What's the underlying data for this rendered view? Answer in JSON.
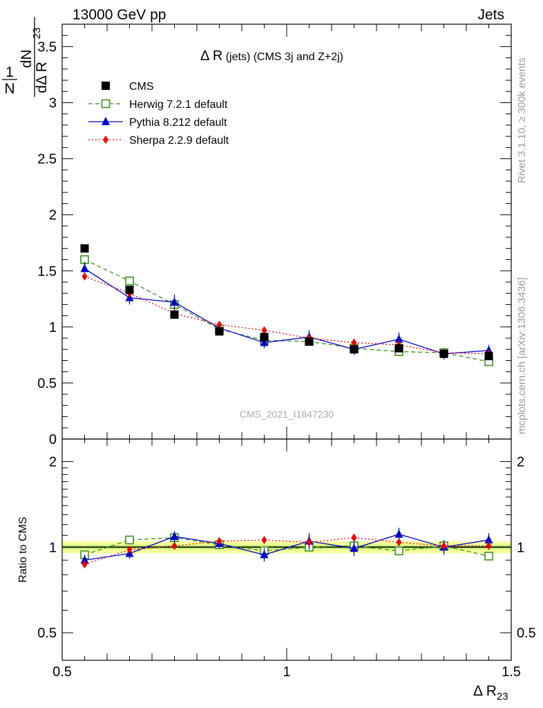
{
  "header": {
    "left": "13000 GeV pp",
    "right": "Jets"
  },
  "side_labels": {
    "rivet": "Rivet 3.1.10, ≥ 300k events",
    "mcplots": "mcplots.cern.ch [arXiv:1306.3436]"
  },
  "main_plot": {
    "title_main": "Δ R",
    "title_sub": " (jets) (CMS 3j and Z+2j)",
    "watermark": "CMS_2021_I1847230",
    "ylabel": {
      "prefix_num": "1",
      "prefix_den": "N",
      "frac_num": "dN",
      "frac_den": "dΔ R",
      "sub": "23"
    },
    "ytick_labels": [
      "0",
      "0.5",
      "1",
      "1.5",
      "2",
      "2.5",
      "3",
      "3.5"
    ],
    "ytick_values": [
      0,
      0.5,
      1,
      1.5,
      2,
      2.5,
      3,
      3.5
    ]
  },
  "ratio_plot": {
    "ylabel": "Ratio to CMS",
    "ytick_labels": [
      "0.5",
      "1",
      "2"
    ],
    "ytick_values": [
      0.5,
      1,
      2
    ]
  },
  "xaxis": {
    "label_main": "Δ R",
    "label_sub": "23",
    "tick_labels": [
      "0.5",
      "1",
      "1.5"
    ],
    "tick_values": [
      0.5,
      1,
      1.5
    ]
  },
  "legend": [
    {
      "name": "CMS",
      "color": "#000000",
      "marker": "square-filled",
      "line": "none"
    },
    {
      "name": "Herwig 7.2.1 default",
      "color": "#3a8f1a",
      "marker": "square-open",
      "line": "dashed"
    },
    {
      "name": "Pythia 8.212 default",
      "color": "#0000cc",
      "marker": "triangle",
      "line": "solid"
    },
    {
      "name": "Sherpa 2.2.9 default",
      "color": "#ee0000",
      "marker": "diamond",
      "line": "dotted"
    }
  ],
  "chart_data": {
    "type": "line",
    "x": [
      0.55,
      0.65,
      0.75,
      0.85,
      0.95,
      1.05,
      1.15,
      1.25,
      1.35,
      1.45
    ],
    "xlim": [
      0.5,
      1.5
    ],
    "ylim": [
      0,
      3.7
    ],
    "ratio_ylim": [
      0.4,
      2.4
    ],
    "ratio_log": true,
    "series": [
      {
        "name": "CMS",
        "values": [
          1.7,
          1.33,
          1.11,
          0.96,
          0.91,
          0.87,
          0.8,
          0.81,
          0.76,
          0.74
        ],
        "ratio": [
          1,
          1,
          1,
          1,
          1,
          1,
          1,
          1,
          1,
          1
        ],
        "ratio_band": 0.03
      },
      {
        "name": "Herwig 7.2.1 default",
        "values": [
          1.6,
          1.41,
          1.2,
          0.98,
          0.88,
          0.87,
          0.81,
          0.78,
          0.77,
          0.69
        ],
        "ratio": [
          0.94,
          1.06,
          1.08,
          1.02,
          0.97,
          1.0,
          1.01,
          0.97,
          1.01,
          0.93
        ]
      },
      {
        "name": "Pythia 8.212 default",
        "values": [
          1.52,
          1.26,
          1.22,
          0.99,
          0.86,
          0.91,
          0.8,
          0.89,
          0.76,
          0.79
        ],
        "errors": [
          0.06,
          0.06,
          0.07,
          0.04,
          0.05,
          0.06,
          0.05,
          0.06,
          0.05,
          0.05
        ],
        "ratio": [
          0.9,
          0.95,
          1.09,
          1.03,
          0.94,
          1.05,
          0.99,
          1.11,
          1.0,
          1.06
        ],
        "ratio_errors": [
          0.04,
          0.04,
          0.05,
          0.04,
          0.05,
          0.07,
          0.06,
          0.06,
          0.06,
          0.06
        ]
      },
      {
        "name": "Sherpa 2.2.9 default",
        "values": [
          1.45,
          1.3,
          1.12,
          1.02,
          0.97,
          0.9,
          0.86,
          0.84,
          0.77,
          0.76
        ],
        "errors": [
          0.02,
          0.02,
          0.02,
          0.03,
          0.02,
          0.02,
          0.02,
          0.02,
          0.02,
          0.02
        ],
        "ratio": [
          0.87,
          0.98,
          1.01,
          1.05,
          1.06,
          1.04,
          1.08,
          1.04,
          1.01,
          1.01
        ],
        "ratio_errors": [
          0.02,
          0.02,
          0.02,
          0.03,
          0.02,
          0.02,
          0.02,
          0.02,
          0.02,
          0.02
        ]
      }
    ]
  }
}
